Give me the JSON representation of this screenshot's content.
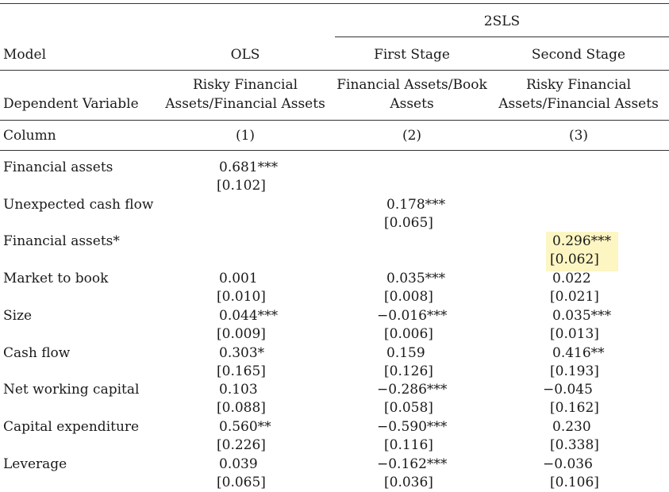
{
  "header": {
    "group_label": "2SLS",
    "model_label": "Model",
    "models": [
      "OLS",
      "First Stage",
      "Second Stage"
    ],
    "depvar_label": "Dependent Variable",
    "depvars": [
      [
        "Risky Financial",
        "Assets/Financial Assets"
      ],
      [
        "Financial Assets/Book",
        "Assets"
      ],
      [
        "Risky Financial",
        "Assets/Financial Assets"
      ]
    ],
    "column_label": "Column",
    "columns": [
      "(1)",
      "(2)",
      "(3)"
    ]
  },
  "rows": [
    {
      "label": "Financial assets",
      "cells": [
        [
          "0.681***",
          "[0.102]"
        ],
        [
          "",
          ""
        ],
        [
          "",
          ""
        ]
      ]
    },
    {
      "label": "Unexpected cash flow",
      "cells": [
        [
          "",
          ""
        ],
        [
          "0.178***",
          "[0.065]"
        ],
        [
          "",
          ""
        ]
      ]
    },
    {
      "label": "Financial assets*",
      "cells": [
        [
          "",
          ""
        ],
        [
          "",
          ""
        ],
        [
          "0.296***",
          "[0.062]"
        ]
      ]
    },
    {
      "label": "Market to book",
      "cells": [
        [
          "0.001",
          "[0.010]"
        ],
        [
          "0.035***",
          "[0.008]"
        ],
        [
          "0.022",
          "[0.021]"
        ]
      ]
    },
    {
      "label": "Size",
      "cells": [
        [
          "0.044***",
          "[0.009]"
        ],
        [
          "−0.016***",
          "[0.006]"
        ],
        [
          "0.035***",
          "[0.013]"
        ]
      ]
    },
    {
      "label": "Cash flow",
      "cells": [
        [
          "0.303*",
          "[0.165]"
        ],
        [
          "0.159",
          "[0.126]"
        ],
        [
          "0.416**",
          "[0.193]"
        ]
      ]
    },
    {
      "label": "Net working capital",
      "cells": [
        [
          "0.103",
          "[0.088]"
        ],
        [
          "−0.286***",
          "[0.058]"
        ],
        [
          "−0.045",
          "[0.162]"
        ]
      ]
    },
    {
      "label": "Capital expenditure",
      "cells": [
        [
          "0.560**",
          "[0.226]"
        ],
        [
          "−0.590***",
          "[0.116]"
        ],
        [
          "0.230",
          "[0.338]"
        ]
      ]
    },
    {
      "label": "Leverage",
      "cells": [
        [
          "0.039",
          "[0.065]"
        ],
        [
          "−0.162***",
          "[0.036]"
        ],
        [
          "−0.036",
          "[0.106]"
        ]
      ]
    }
  ],
  "highlight_color": "#fdf6c3"
}
